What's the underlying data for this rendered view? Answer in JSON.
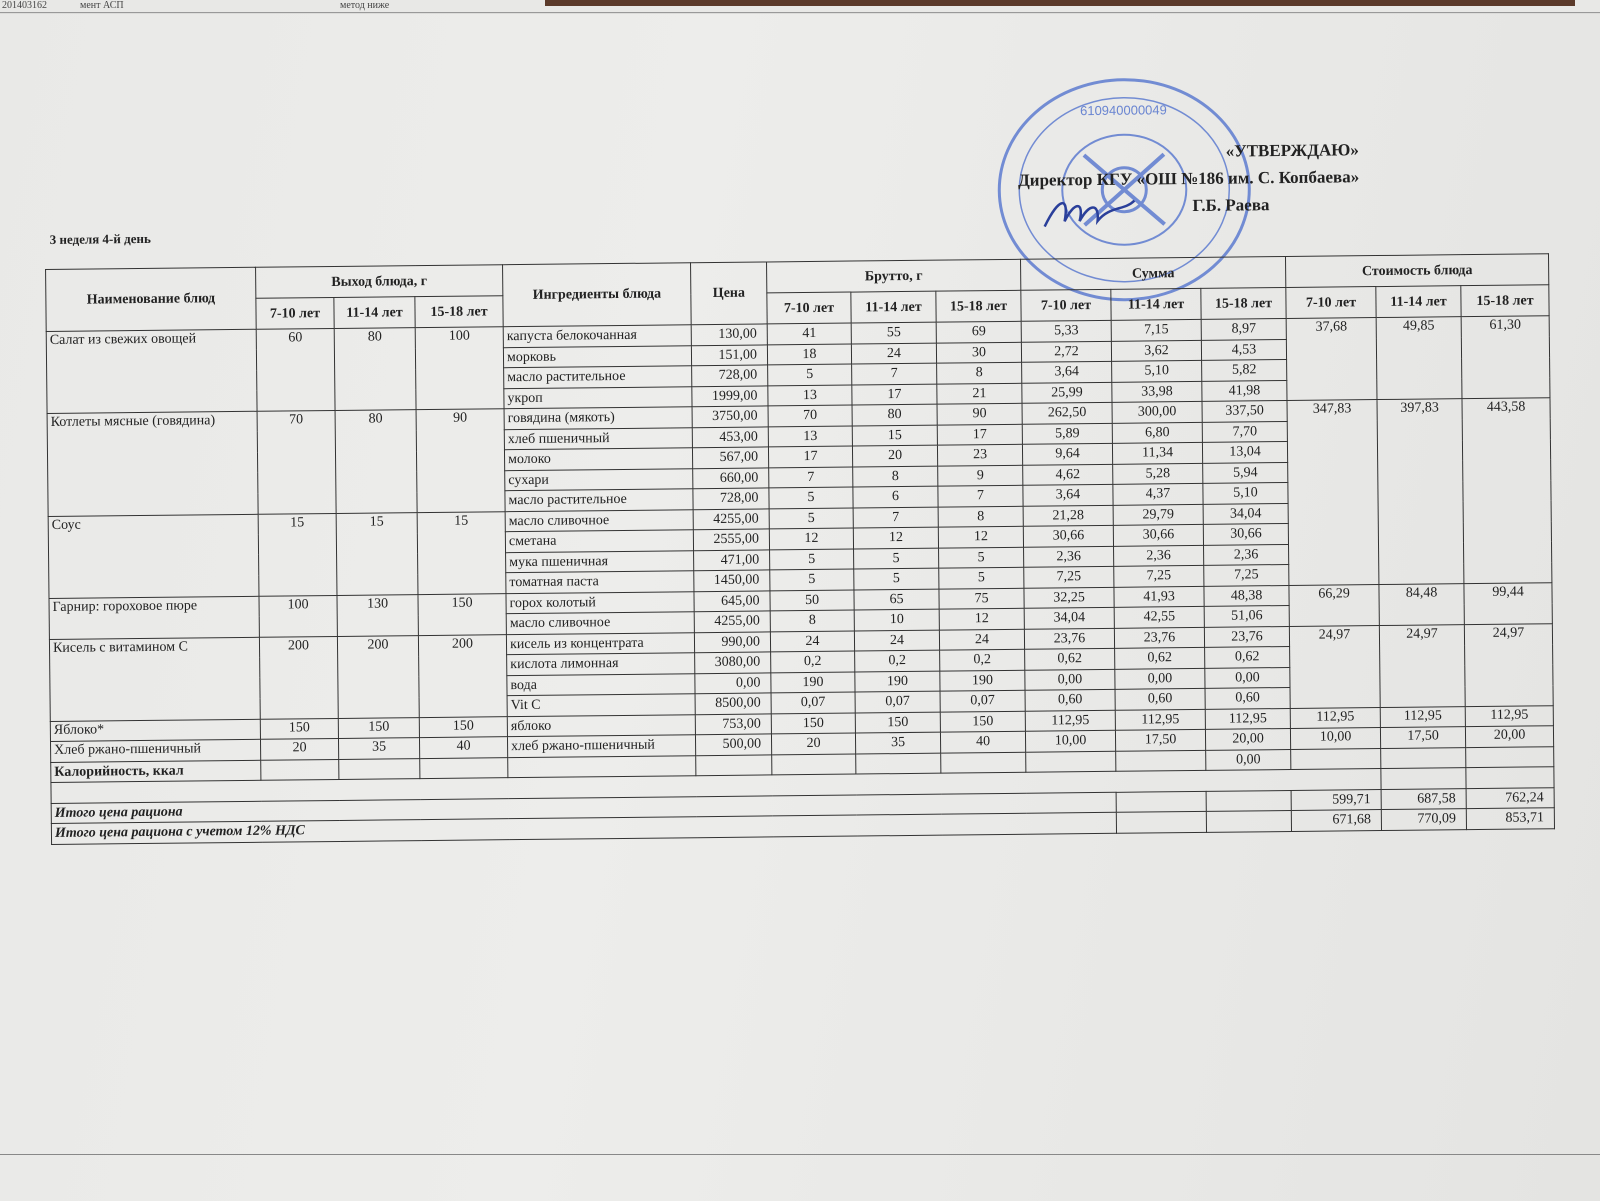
{
  "top_strip": {
    "left_code": "201403162",
    "left_text": "мент АСП",
    "mid_text": "метод ниже"
  },
  "approval": {
    "title": "«УТВЕРЖДАЮ»",
    "position": "Директор КГУ «ОШ №186 им. С. Копбаева»",
    "name": "Г.Б. Раева",
    "stamp_text": "КАЗАКСТАН РЕСПУБЛИКАСЫ АЛМАТЫ ... С.КОПБАЕВ АТЫНДАҒЫ №186 ЖАЛПЫ БІЛІМ БЕРЕТІН МЕКТЕП 610940000049",
    "stamp_color": "#3a5fc4"
  },
  "day_label": "3 неделя 4-й день",
  "headers": {
    "dish": "Наименование блюд",
    "yield": "Выход блюда, г",
    "ingredients": "Ингредиенты блюда",
    "price": "Цена",
    "brutto": "Брутто, г",
    "sum": "Сумма",
    "cost": "Стоимость блюда",
    "ages": [
      "7-10 лет",
      "11-14 лет",
      "15-18 лет"
    ]
  },
  "dishes": [
    {
      "name": "Салат из свежих овощей",
      "yield": [
        "60",
        "80",
        "100"
      ],
      "cost": [
        "37,68",
        "49,85",
        "61,30"
      ],
      "ingredients": [
        {
          "name": "капуста белокочанная",
          "price": "130,00",
          "brutto": [
            "41",
            "55",
            "69"
          ],
          "sum": [
            "5,33",
            "7,15",
            "8,97"
          ]
        },
        {
          "name": "морковь",
          "price": "151,00",
          "brutto": [
            "18",
            "24",
            "30"
          ],
          "sum": [
            "2,72",
            "3,62",
            "4,53"
          ]
        },
        {
          "name": "масло растительное",
          "price": "728,00",
          "brutto": [
            "5",
            "7",
            "8"
          ],
          "sum": [
            "3,64",
            "5,10",
            "5,82"
          ]
        },
        {
          "name": "укроп",
          "price": "1999,00",
          "brutto": [
            "13",
            "17",
            "21"
          ],
          "sum": [
            "25,99",
            "33,98",
            "41,98"
          ]
        }
      ]
    },
    {
      "name": "Котлеты мясные (говядина)",
      "yield": [
        "70",
        "80",
        "90"
      ],
      "cost": [
        "347,83",
        "397,83",
        "443,58"
      ],
      "cost_rows": 9,
      "ingredients": [
        {
          "name": "говядина (мякоть)",
          "price": "3750,00",
          "brutto": [
            "70",
            "80",
            "90"
          ],
          "sum": [
            "262,50",
            "300,00",
            "337,50"
          ]
        },
        {
          "name": "хлеб пшеничный",
          "price": "453,00",
          "brutto": [
            "13",
            "15",
            "17"
          ],
          "sum": [
            "5,89",
            "6,80",
            "7,70"
          ]
        },
        {
          "name": "молоко",
          "price": "567,00",
          "brutto": [
            "17",
            "20",
            "23"
          ],
          "sum": [
            "9,64",
            "11,34",
            "13,04"
          ]
        },
        {
          "name": "сухари",
          "price": "660,00",
          "brutto": [
            "7",
            "8",
            "9"
          ],
          "sum": [
            "4,62",
            "5,28",
            "5,94"
          ]
        },
        {
          "name": "масло растительное",
          "price": "728,00",
          "brutto": [
            "5",
            "6",
            "7"
          ],
          "sum": [
            "3,64",
            "4,37",
            "5,10"
          ]
        }
      ]
    },
    {
      "name": "Соус",
      "yield": [
        "15",
        "15",
        "15"
      ],
      "cost": null,
      "ingredients": [
        {
          "name": "масло сливочное",
          "price": "4255,00",
          "brutto": [
            "5",
            "7",
            "8"
          ],
          "sum": [
            "21,28",
            "29,79",
            "34,04"
          ]
        },
        {
          "name": "сметана",
          "price": "2555,00",
          "brutto": [
            "12",
            "12",
            "12"
          ],
          "sum": [
            "30,66",
            "30,66",
            "30,66"
          ]
        },
        {
          "name": "мука пшеничная",
          "price": "471,00",
          "brutto": [
            "5",
            "5",
            "5"
          ],
          "sum": [
            "2,36",
            "2,36",
            "2,36"
          ]
        },
        {
          "name": "томатная паста",
          "price": "1450,00",
          "brutto": [
            "5",
            "5",
            "5"
          ],
          "sum": [
            "7,25",
            "7,25",
            "7,25"
          ]
        }
      ]
    },
    {
      "name": "Гарнир: гороховое пюре",
      "yield": [
        "100",
        "130",
        "150"
      ],
      "cost": [
        "66,29",
        "84,48",
        "99,44"
      ],
      "ingredients": [
        {
          "name": "горох колотый",
          "price": "645,00",
          "brutto": [
            "50",
            "65",
            "75"
          ],
          "sum": [
            "32,25",
            "41,93",
            "48,38"
          ]
        },
        {
          "name": "масло сливочное",
          "price": "4255,00",
          "brutto": [
            "8",
            "10",
            "12"
          ],
          "sum": [
            "34,04",
            "42,55",
            "51,06"
          ]
        }
      ]
    },
    {
      "name": "Кисель с витамином С",
      "yield": [
        "200",
        "200",
        "200"
      ],
      "cost": [
        "24,97",
        "24,97",
        "24,97"
      ],
      "ingredients": [
        {
          "name": "кисель из концентрата",
          "price": "990,00",
          "brutto": [
            "24",
            "24",
            "24"
          ],
          "sum": [
            "23,76",
            "23,76",
            "23,76"
          ]
        },
        {
          "name": "кислота лимонная",
          "price": "3080,00",
          "brutto": [
            "0,2",
            "0,2",
            "0,2"
          ],
          "sum": [
            "0,62",
            "0,62",
            "0,62"
          ]
        },
        {
          "name": "вода",
          "price": "0,00",
          "brutto": [
            "190",
            "190",
            "190"
          ],
          "sum": [
            "0,00",
            "0,00",
            "0,00"
          ]
        },
        {
          "name": "Vit C",
          "price": "8500,00",
          "brutto": [
            "0,07",
            "0,07",
            "0,07"
          ],
          "sum": [
            "0,60",
            "0,60",
            "0,60"
          ]
        }
      ]
    },
    {
      "name": "Яблоко*",
      "yield": [
        "150",
        "150",
        "150"
      ],
      "cost": [
        "112,95",
        "112,95",
        "112,95"
      ],
      "ingredients": [
        {
          "name": "яблоко",
          "price": "753,00",
          "brutto": [
            "150",
            "150",
            "150"
          ],
          "sum": [
            "112,95",
            "112,95",
            "112,95"
          ]
        }
      ]
    },
    {
      "name": "Хлеб ржано-пшеничный",
      "yield": [
        "20",
        "35",
        "40"
      ],
      "cost": [
        "10,00",
        "17,50",
        "20,00"
      ],
      "ingredients": [
        {
          "name": "хлеб ржано-пшеничный",
          "price": "500,00",
          "brutto": [
            "20",
            "35",
            "40"
          ],
          "sum": [
            "10,00",
            "17,50",
            "20,00"
          ]
        }
      ]
    }
  ],
  "calories": {
    "label": "Калорийность, ккал",
    "sum_15_18": "0,00"
  },
  "totals": [
    {
      "label": "Итого цена рациона",
      "values": [
        "599,71",
        "687,58",
        "762,24"
      ]
    },
    {
      "label": "Итого цена рациона с учетом 12% НДС",
      "values": [
        "671,68",
        "770,09",
        "853,71"
      ]
    }
  ]
}
